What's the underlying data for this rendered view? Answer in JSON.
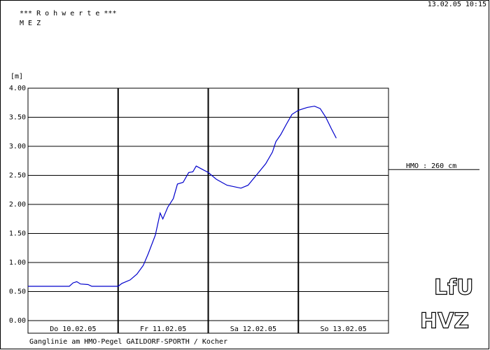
{
  "chart_data": {
    "type": "line",
    "header": "*** R o h w e r t e ***",
    "timezone": "M E Z",
    "timestamp": "13.02.05 10:15",
    "y_label": "[m]",
    "caption": "Ganglinie am HMO-Pegel GAILDORF-SPORTH / Kocher",
    "hmo_label": "HMO : 260 cm",
    "hmo_level": 2.6,
    "logos": [
      "LfU",
      "HVZ"
    ],
    "color": "#0000cc",
    "xlim": [
      0,
      96
    ],
    "xticks": [
      {
        "value": 12,
        "label": "Do 10.02.05"
      },
      {
        "value": 36,
        "label": "Fr 11.02.05"
      },
      {
        "value": 60,
        "label": "Sa 12.02.05"
      },
      {
        "value": 84,
        "label": "So 13.02.05"
      }
    ],
    "ylim": [
      0,
      4
    ],
    "yticks": [
      {
        "value": 0,
        "label": "0.00"
      },
      {
        "value": 0.5,
        "label": "0.50"
      },
      {
        "value": 1,
        "label": "1.00"
      },
      {
        "value": 1.5,
        "label": "1.50"
      },
      {
        "value": 2,
        "label": "2.00"
      },
      {
        "value": 2.5,
        "label": "2.50"
      },
      {
        "value": 3,
        "label": "3.00"
      },
      {
        "value": 3.5,
        "label": "3.50"
      },
      {
        "value": 4,
        "label": "4.00"
      }
    ],
    "grid": true,
    "x": [
      0,
      11,
      12,
      13,
      14,
      16,
      17,
      24,
      25,
      27.2,
      29,
      30.7,
      32,
      33.9,
      35.2,
      35.9,
      37.2,
      38.7,
      39.8,
      41.3,
      42.8,
      43.9,
      44.8,
      46.5,
      48,
      50.2,
      53,
      56.7,
      58.6,
      60.5,
      63.3,
      65.1,
      66,
      67.3,
      68.8,
      70.3,
      72,
      74.4,
      76.3,
      77.8,
      79.3,
      80.8,
      82.1
    ],
    "values": [
      0.59,
      0.59,
      0.65,
      0.67,
      0.63,
      0.62,
      0.59,
      0.59,
      0.64,
      0.7,
      0.8,
      0.95,
      1.15,
      1.47,
      1.85,
      1.75,
      1.95,
      2.1,
      2.35,
      2.38,
      2.55,
      2.56,
      2.66,
      2.6,
      2.55,
      2.43,
      2.33,
      2.28,
      2.33,
      2.48,
      2.7,
      2.9,
      3.08,
      3.2,
      3.38,
      3.55,
      3.62,
      3.67,
      3.69,
      3.65,
      3.5,
      3.3,
      3.14
    ]
  }
}
